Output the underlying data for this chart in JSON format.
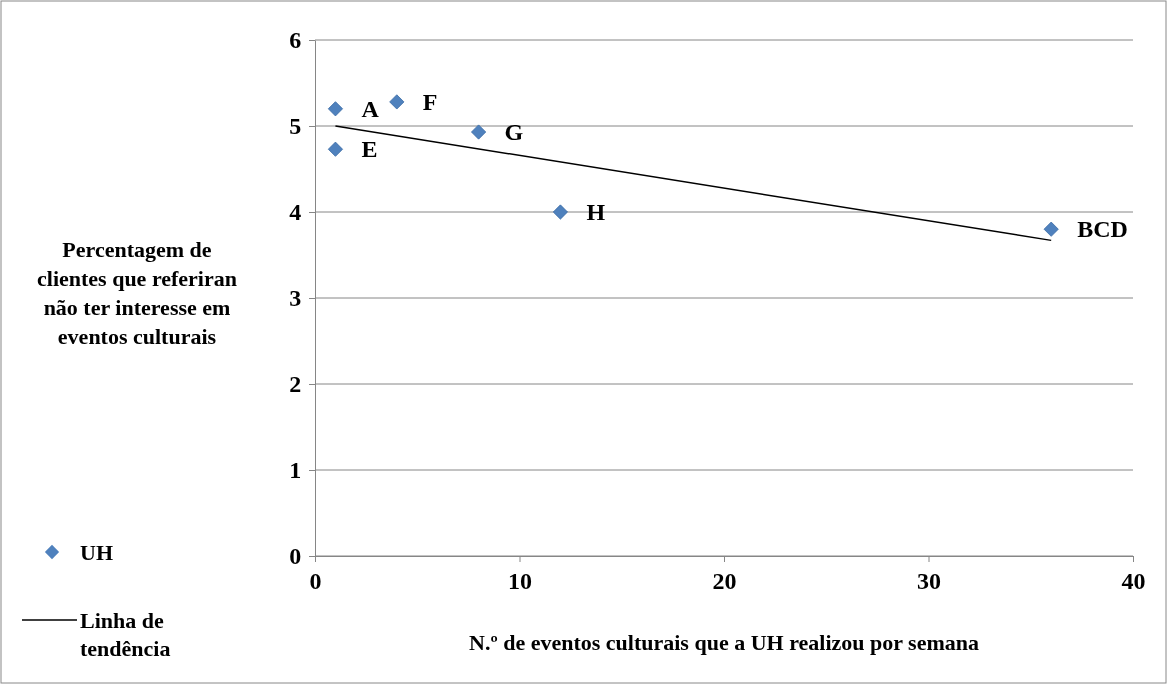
{
  "chart_data": {
    "type": "scatter",
    "xlabel": "N.º de eventos culturais que a UH realizou por semana",
    "ylabel": "Percentagem de clientes que referiran não ter interesse em eventos culturais",
    "xlim": [
      0,
      40
    ],
    "xticks": [
      0,
      10,
      20,
      30,
      40
    ],
    "ylim": [
      0,
      6
    ],
    "yticks": [
      0,
      1,
      2,
      3,
      4,
      5,
      6
    ],
    "grid": "y",
    "legend": "bottom left",
    "marker": "diamond",
    "series": [
      {
        "name": "UH",
        "color": "#4f81bd",
        "x": [
          1,
          4,
          8,
          1,
          12,
          36
        ],
        "values": [
          5.2,
          5.28,
          4.93,
          4.73,
          4.0,
          3.8
        ]
      },
      {
        "name": "Linha de tendência",
        "type": "line",
        "marker": "none",
        "color": "#000000",
        "x": [
          1,
          36
        ],
        "values": [
          5.0,
          3.67
        ]
      }
    ],
    "annotations": [
      {
        "text": "A",
        "x": 1,
        "y": 5.2
      },
      {
        "text": "F",
        "x": 4,
        "y": 5.28
      },
      {
        "text": "G",
        "x": 8,
        "y": 4.93
      },
      {
        "text": "E",
        "x": 1,
        "y": 4.73
      },
      {
        "text": "H",
        "x": 12,
        "y": 4.0
      },
      {
        "text": "BCD",
        "x": 36,
        "y": 3.8
      }
    ]
  }
}
